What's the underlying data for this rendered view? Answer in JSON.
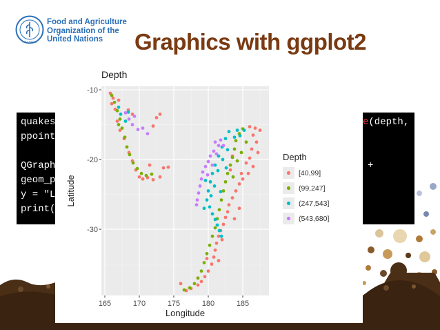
{
  "header": {
    "org_line1": "Food and Agriculture",
    "org_line2": "Organization of the",
    "org_line3": "United Nations",
    "logo_text": "FIAT PANIS",
    "title": "Graphics with ggplot2"
  },
  "code": {
    "line1": "quakes",
    "line2": "ppoint",
    "line4": "QGraph",
    "line5": "geom_p",
    "line6": "y = \"L",
    "line7": "print(",
    "line1_right_red": "e",
    "line1_right": "(depth,",
    "line4_right": "+"
  },
  "colors": {
    "title": "#7a3a12",
    "org_text": "#2a6fb8",
    "panel_bg": "#ebebeb",
    "series_1": "#f8766d",
    "series_2": "#7cae00",
    "series_3": "#00bfc4",
    "series_4": "#c77cff"
  },
  "chart_data": {
    "type": "scatter",
    "title": "Depth",
    "xlabel": "Longitude",
    "ylabel": "Latitude",
    "xlim": [
      164.5,
      188.8
    ],
    "ylim": [
      -39.5,
      -9.5
    ],
    "xticks": [
      165,
      170,
      175,
      180,
      185
    ],
    "yticks": [
      -10,
      -20,
      -30
    ],
    "grid": true,
    "legend_position": "right",
    "legend_title": "Depth",
    "series": [
      {
        "name": "[40,99]",
        "color": "#f8766d",
        "points": [
          [
            165.8,
            -10.5
          ],
          [
            166.2,
            -11.2
          ],
          [
            166.0,
            -12.0
          ],
          [
            166.5,
            -12.8
          ],
          [
            167.0,
            -11.5
          ],
          [
            168.4,
            -12.9
          ],
          [
            169.0,
            -13.5
          ],
          [
            166.8,
            -14.5
          ],
          [
            167.2,
            -15.8
          ],
          [
            167.8,
            -17.0
          ],
          [
            168.5,
            -19.0
          ],
          [
            169.0,
            -20.2
          ],
          [
            169.5,
            -21.5
          ],
          [
            170.0,
            -22.5
          ],
          [
            170.5,
            -22.8
          ],
          [
            171.2,
            -22.6
          ],
          [
            172.0,
            -22.9
          ],
          [
            173.0,
            -22.5
          ],
          [
            173.5,
            -21.2
          ],
          [
            174.2,
            -21.1
          ],
          [
            171.5,
            -20.8
          ],
          [
            172.5,
            -14.0
          ],
          [
            173.0,
            -13.5
          ],
          [
            172.0,
            -15.2
          ],
          [
            186.0,
            -15.3
          ],
          [
            186.8,
            -15.5
          ],
          [
            187.5,
            -15.8
          ],
          [
            186.5,
            -16.5
          ],
          [
            187.0,
            -17.5
          ],
          [
            186.3,
            -18.5
          ],
          [
            187.2,
            -19.0
          ],
          [
            186.0,
            -19.8
          ],
          [
            185.5,
            -20.5
          ],
          [
            186.5,
            -21.0
          ],
          [
            185.8,
            -22.0
          ],
          [
            185.0,
            -22.8
          ],
          [
            184.5,
            -23.5
          ],
          [
            184.0,
            -24.5
          ],
          [
            183.5,
            -25.5
          ],
          [
            183.0,
            -26.5
          ],
          [
            182.8,
            -27.5
          ],
          [
            182.5,
            -28.3
          ],
          [
            182.2,
            -29.3
          ],
          [
            181.8,
            -30.2
          ],
          [
            181.5,
            -31.0
          ],
          [
            181.2,
            -32.0
          ],
          [
            181.0,
            -33.0
          ],
          [
            180.8,
            -34.0
          ],
          [
            180.5,
            -35.0
          ],
          [
            180.0,
            -36.0
          ],
          [
            179.5,
            -36.8
          ],
          [
            179.0,
            -37.5
          ],
          [
            178.5,
            -38.0
          ],
          [
            177.5,
            -38.5
          ],
          [
            176.8,
            -38.8
          ],
          [
            176.0,
            -37.8
          ],
          [
            184.5,
            -27.0
          ],
          [
            183.8,
            -28.5
          ],
          [
            182.0,
            -31.5
          ],
          [
            181.5,
            -34.5
          ],
          [
            179.8,
            -34.2
          ],
          [
            184.8,
            -22.0
          ],
          [
            183.2,
            -21.5
          ],
          [
            183.5,
            -19.5
          ]
        ]
      },
      {
        "name": "(99,247]",
        "color": "#7cae00",
        "points": [
          [
            166.0,
            -10.8
          ],
          [
            166.4,
            -11.8
          ],
          [
            166.8,
            -13.0
          ],
          [
            167.2,
            -14.2
          ],
          [
            167.5,
            -15.5
          ],
          [
            167.9,
            -16.8
          ],
          [
            168.2,
            -18.2
          ],
          [
            168.6,
            -19.3
          ],
          [
            169.1,
            -20.5
          ],
          [
            169.7,
            -21.3
          ],
          [
            170.3,
            -22.0
          ],
          [
            171.0,
            -22.3
          ],
          [
            171.8,
            -22.1
          ],
          [
            167.0,
            -15.0
          ],
          [
            185.0,
            -15.6
          ],
          [
            184.5,
            -16.3
          ],
          [
            184.0,
            -17.3
          ],
          [
            183.8,
            -18.5
          ],
          [
            183.5,
            -19.7
          ],
          [
            183.2,
            -20.8
          ],
          [
            182.8,
            -22.0
          ],
          [
            182.5,
            -23.2
          ],
          [
            182.2,
            -24.5
          ],
          [
            181.9,
            -25.8
          ],
          [
            181.6,
            -27.2
          ],
          [
            181.3,
            -28.5
          ],
          [
            181.0,
            -29.8
          ],
          [
            180.6,
            -31.0
          ],
          [
            180.2,
            -32.3
          ],
          [
            179.8,
            -33.5
          ],
          [
            179.4,
            -34.8
          ],
          [
            179.0,
            -36.0
          ],
          [
            178.5,
            -37.0
          ],
          [
            178.0,
            -37.8
          ],
          [
            177.3,
            -38.4
          ],
          [
            176.5,
            -38.7
          ],
          [
            185.5,
            -17.5
          ],
          [
            184.8,
            -19.0
          ],
          [
            184.2,
            -20.2
          ],
          [
            183.6,
            -22.5
          ]
        ]
      },
      {
        "name": "(247,543]",
        "color": "#00bfc4",
        "points": [
          [
            167.0,
            -12.5
          ],
          [
            167.3,
            -13.5
          ],
          [
            168.0,
            -14.5
          ],
          [
            168.4,
            -13.2
          ],
          [
            183.8,
            -16.8
          ],
          [
            184.2,
            -15.8
          ],
          [
            183.0,
            -16.0
          ],
          [
            182.5,
            -17.0
          ],
          [
            182.0,
            -18.2
          ],
          [
            181.5,
            -19.5
          ],
          [
            181.0,
            -20.8
          ],
          [
            180.6,
            -22.0
          ],
          [
            180.3,
            -23.2
          ],
          [
            180.0,
            -24.5
          ],
          [
            179.8,
            -25.8
          ],
          [
            180.2,
            -26.8
          ],
          [
            180.6,
            -27.8
          ],
          [
            181.0,
            -28.6
          ],
          [
            181.3,
            -29.4
          ],
          [
            181.6,
            -30.2
          ],
          [
            181.9,
            -31.0
          ],
          [
            179.6,
            -23.0
          ],
          [
            180.9,
            -23.8
          ],
          [
            181.4,
            -21.6
          ],
          [
            182.1,
            -20.0
          ],
          [
            182.8,
            -18.6
          ],
          [
            184.6,
            -16.6
          ],
          [
            185.2,
            -15.8
          ],
          [
            179.4,
            -27.0
          ],
          [
            180.4,
            -25.2
          ],
          [
            181.8,
            -24.6
          ],
          [
            182.6,
            -21.2
          ]
        ]
      },
      {
        "name": "(543,680]",
        "color": "#c77cff",
        "points": [
          [
            168.0,
            -13.3
          ],
          [
            168.5,
            -14.2
          ],
          [
            169.0,
            -15.0
          ],
          [
            169.8,
            -15.7
          ],
          [
            170.5,
            -15.5
          ],
          [
            171.2,
            -16.3
          ],
          [
            169.3,
            -13.8
          ],
          [
            181.0,
            -17.5
          ],
          [
            181.5,
            -18.0
          ],
          [
            180.8,
            -18.8
          ],
          [
            180.3,
            -19.5
          ],
          [
            180.0,
            -20.3
          ],
          [
            179.6,
            -21.0
          ],
          [
            179.2,
            -21.8
          ],
          [
            179.0,
            -22.8
          ],
          [
            178.8,
            -23.8
          ],
          [
            178.6,
            -24.8
          ],
          [
            178.4,
            -25.8
          ],
          [
            178.3,
            -26.5
          ],
          [
            181.8,
            -17.2
          ],
          [
            182.2,
            -18.0
          ],
          [
            180.6,
            -20.8
          ],
          [
            179.9,
            -22.2
          ],
          [
            181.2,
            -19.2
          ]
        ]
      }
    ]
  }
}
